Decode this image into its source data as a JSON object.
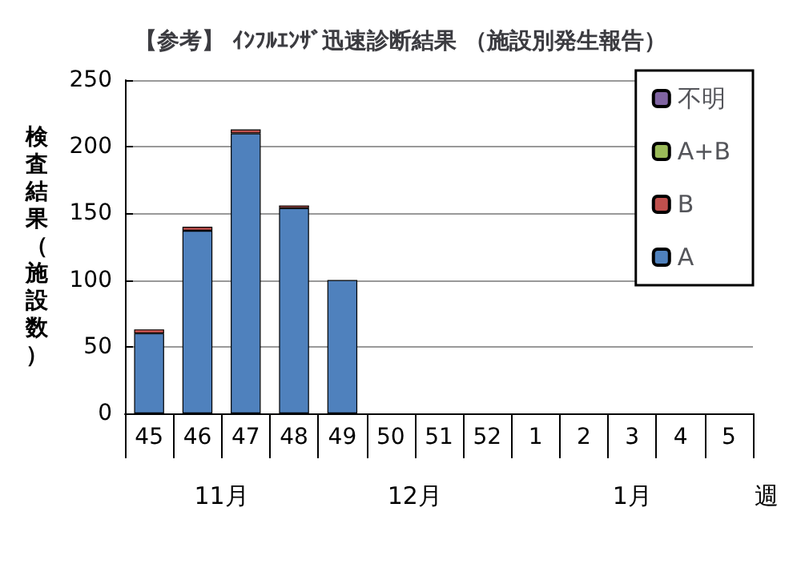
{
  "chart_data": {
    "type": "bar",
    "title": "【参考】 ｲﾝﾌﾙｴﾝｻﾞ迅速診断結果 （施設別発生報告）",
    "ylabel": "検査結果（施設数）",
    "categories": [
      "45",
      "46",
      "47",
      "48",
      "49",
      "50",
      "51",
      "52",
      "1",
      "2",
      "3",
      "4",
      "5"
    ],
    "stacked": true,
    "series": [
      {
        "name": "A",
        "color": "#4f81bd",
        "values": [
          60,
          137,
          210,
          154,
          100,
          null,
          null,
          null,
          null,
          null,
          null,
          null,
          null
        ]
      },
      {
        "name": "B",
        "color": "#c0504d",
        "values": [
          3,
          3,
          3,
          2,
          null,
          null,
          null,
          null,
          null,
          null,
          null,
          null,
          null
        ]
      },
      {
        "name": "A+B",
        "color": "#9bbb59",
        "values": [
          null,
          null,
          null,
          null,
          null,
          null,
          null,
          null,
          null,
          null,
          null,
          null,
          null
        ]
      },
      {
        "name": "不明",
        "color": "#8064a2",
        "values": [
          null,
          null,
          null,
          null,
          null,
          null,
          null,
          null,
          null,
          null,
          null,
          null,
          null
        ]
      }
    ],
    "ylim": [
      0,
      250
    ],
    "yticks": [
      0,
      50,
      100,
      150,
      200,
      250
    ],
    "grid": "y",
    "legend": "top right",
    "annotations": [
      "11月",
      "12月",
      "1月",
      "週"
    ]
  }
}
